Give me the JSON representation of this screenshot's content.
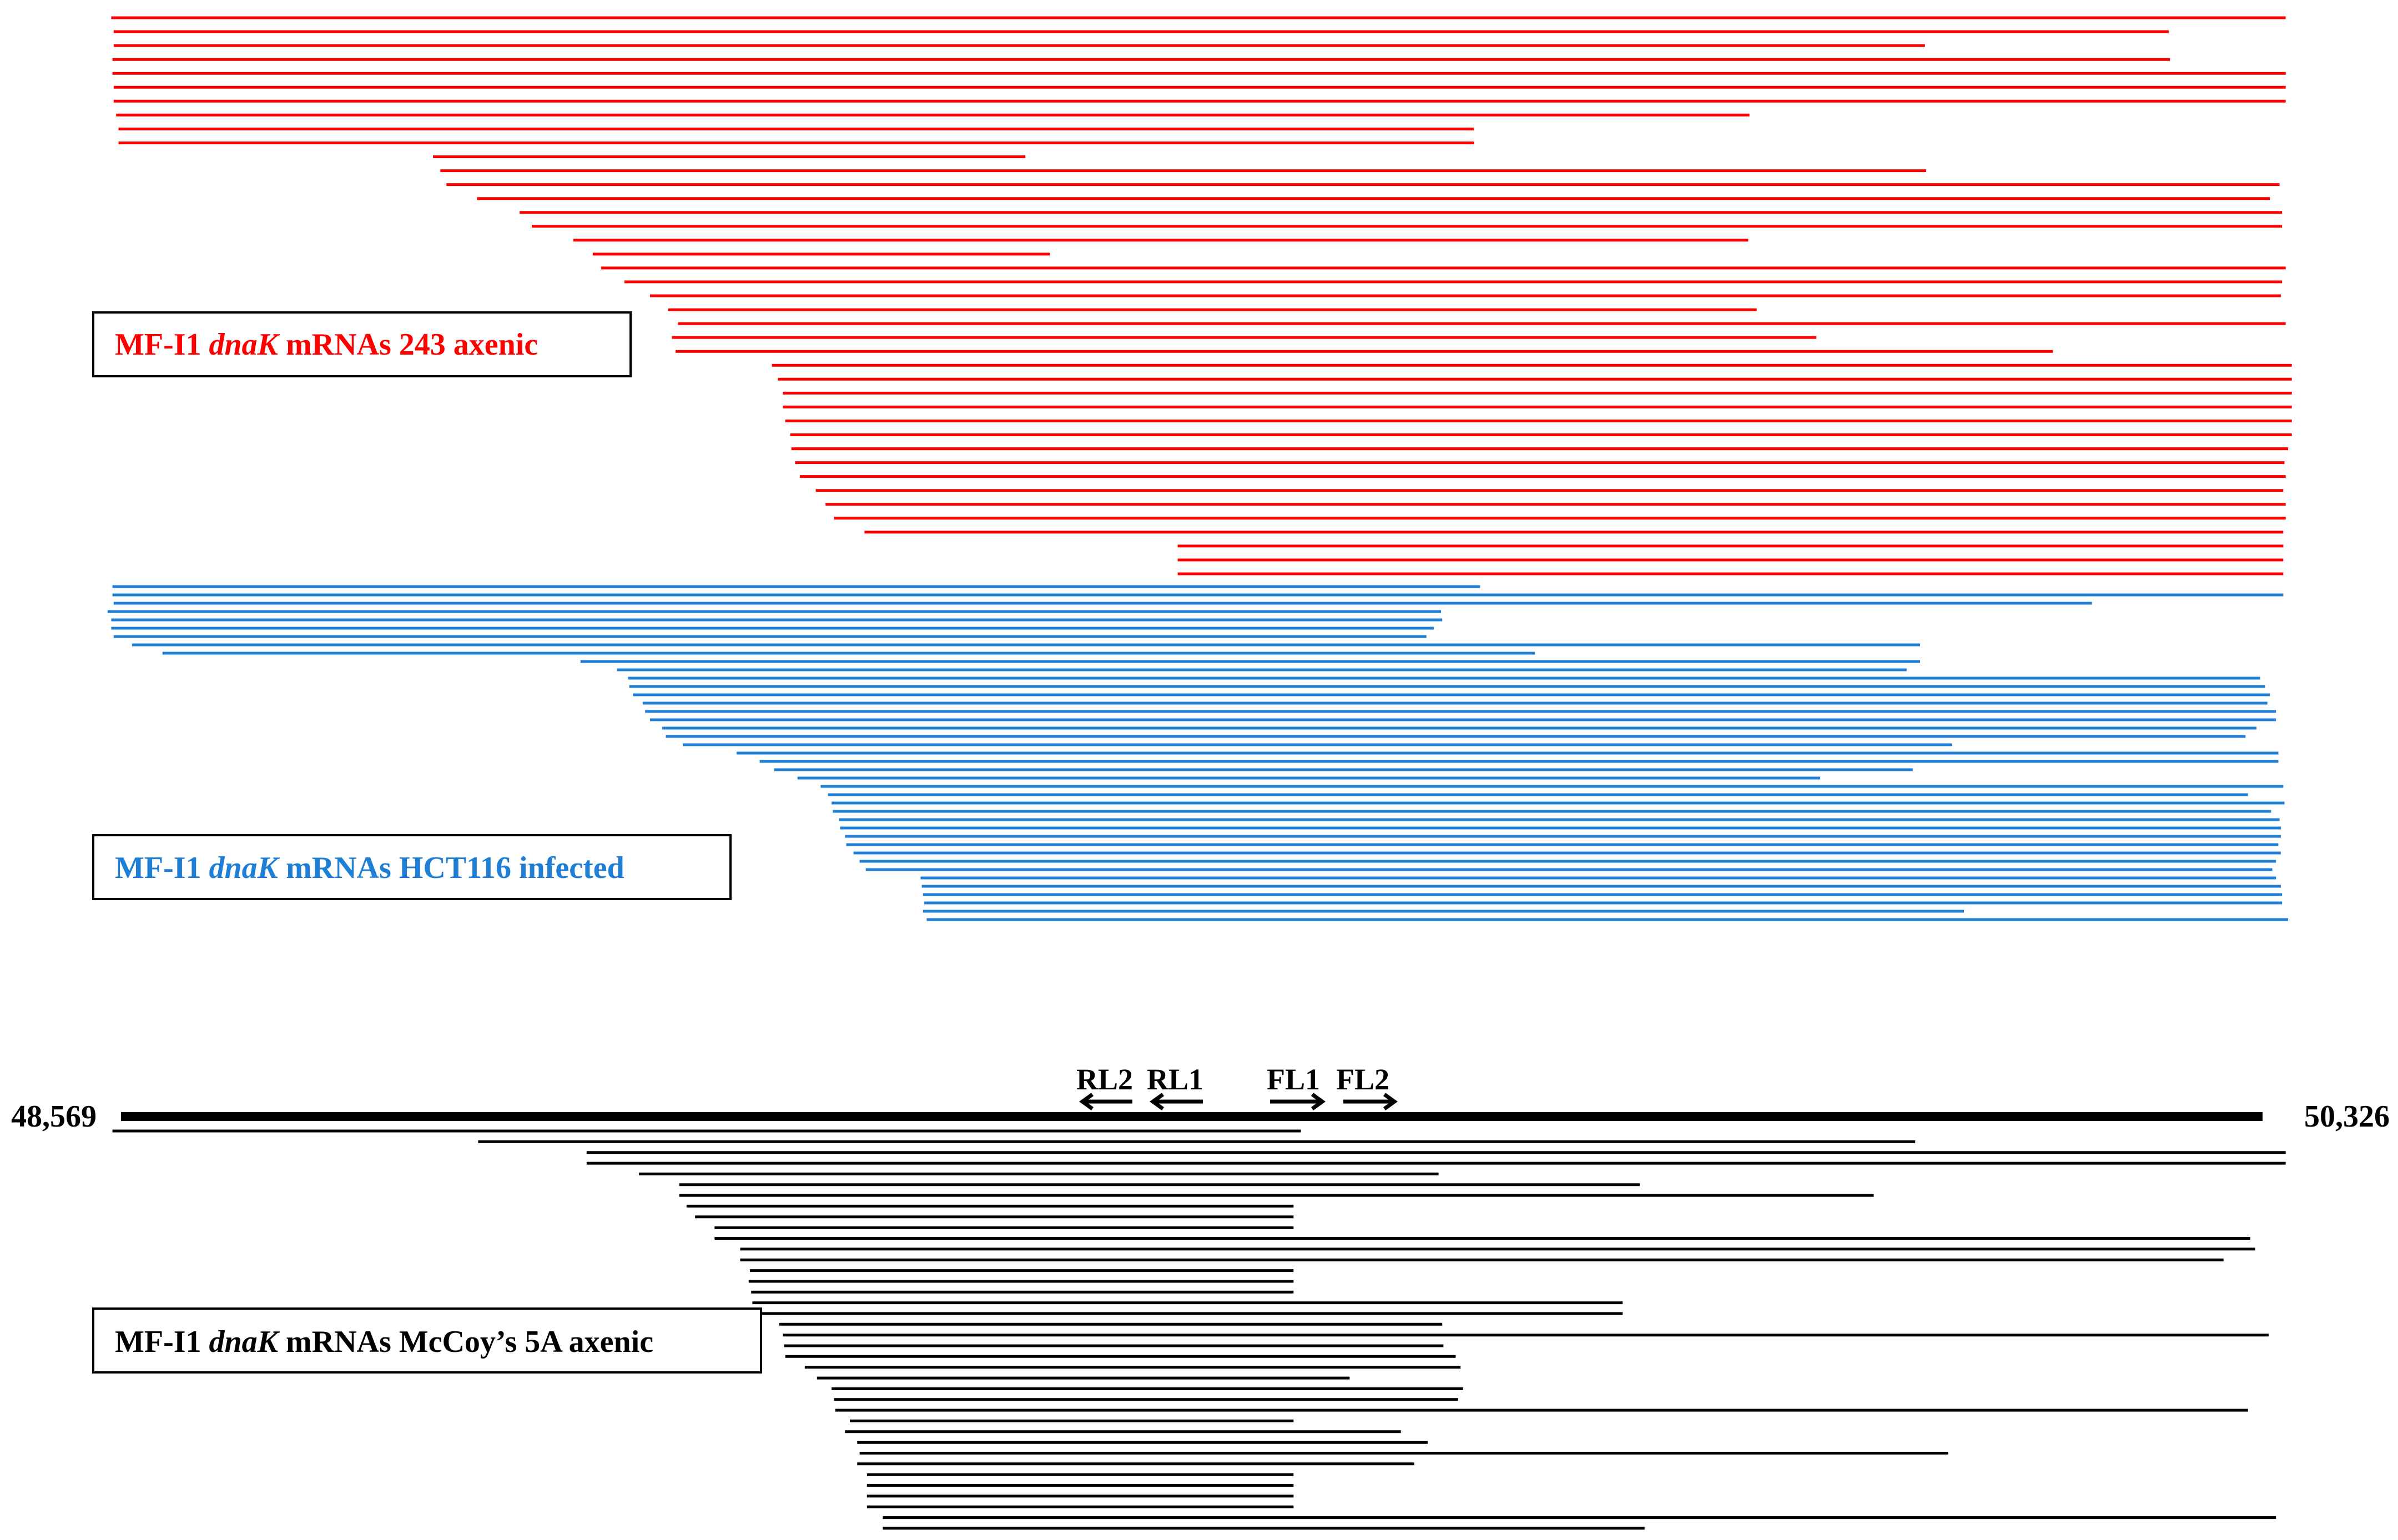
{
  "colors": {
    "axenic_243": "#ff0000",
    "hct116_infected": "#1f7fd6",
    "mccoy_5a_axenic": "#000000",
    "genome_axis": "#000000",
    "primer_arrows": "#000000"
  },
  "genome": {
    "start_label": "48,569",
    "end_label": "50,326",
    "start": 48569,
    "end": 50326
  },
  "primers": [
    {
      "label": "RL2",
      "direction": "left"
    },
    {
      "label": "RL1",
      "direction": "left"
    },
    {
      "label": "FL1",
      "direction": "right"
    },
    {
      "label": "FL2",
      "direction": "right"
    }
  ],
  "groups": [
    {
      "id": "axenic_243",
      "label_prefix": "MF-I1 ",
      "label_gene": "dnaK",
      "label_suffix": " mRNAs 243 axenic",
      "color": "#ff0000",
      "reads": [
        [
          48561,
          50345
        ],
        [
          48563,
          50249
        ],
        [
          48563,
          50049
        ],
        [
          48562,
          50250
        ],
        [
          48562,
          50345
        ],
        [
          48563,
          50345
        ],
        [
          48563,
          50345
        ],
        [
          48565,
          49905
        ],
        [
          48567,
          49679
        ],
        [
          48567,
          49679
        ],
        [
          48825,
          49311
        ],
        [
          48831,
          50050
        ],
        [
          48836,
          50340
        ],
        [
          48861,
          50332
        ],
        [
          48896,
          50342
        ],
        [
          48906,
          50342
        ],
        [
          48940,
          49904
        ],
        [
          48956,
          49331
        ],
        [
          48963,
          50345
        ],
        [
          48982,
          50342
        ],
        [
          49003,
          50341
        ],
        [
          49018,
          49911
        ],
        [
          49026,
          50345
        ],
        [
          49021,
          49960
        ],
        [
          49024,
          50154
        ],
        [
          49103,
          50350
        ],
        [
          49108,
          50350
        ],
        [
          49112,
          50350
        ],
        [
          49112,
          50350
        ],
        [
          49114,
          50350
        ],
        [
          49118,
          50350
        ],
        [
          49119,
          50347
        ],
        [
          49122,
          50344
        ],
        [
          49126,
          50345
        ],
        [
          49139,
          50343
        ],
        [
          49147,
          50345
        ],
        [
          49154,
          50345
        ],
        [
          49179,
          50343
        ],
        [
          49436,
          50343
        ],
        [
          49436,
          50343
        ],
        [
          49436,
          50343
        ]
      ]
    },
    {
      "id": "hct116_infected",
      "label_prefix": "MF-I1 ",
      "label_gene": "dnaK",
      "label_suffix": " mRNAs HCT116 infected",
      "color": "#1f7fd6",
      "reads": [
        [
          48562,
          49684
        ],
        [
          48562,
          50343
        ],
        [
          48563,
          50186
        ],
        [
          48558,
          49652
        ],
        [
          48561,
          49653
        ],
        [
          48561,
          49646
        ],
        [
          48563,
          49640
        ],
        [
          48578,
          50045
        ],
        [
          48603,
          49729
        ],
        [
          48946,
          50045
        ],
        [
          48976,
          50034
        ],
        [
          48985,
          50324
        ],
        [
          48986,
          50328
        ],
        [
          48989,
          50332
        ],
        [
          48997,
          50330
        ],
        [
          48999,
          50337
        ],
        [
          49003,
          50337
        ],
        [
          49013,
          50321
        ],
        [
          49016,
          50312
        ],
        [
          49030,
          50071
        ],
        [
          49074,
          50339
        ],
        [
          49093,
          50339
        ],
        [
          49105,
          50039
        ],
        [
          49124,
          49963
        ],
        [
          49143,
          50343
        ],
        [
          49149,
          50314
        ],
        [
          49152,
          50344
        ],
        [
          49153,
          50333
        ],
        [
          49158,
          50340
        ],
        [
          49159,
          50341
        ],
        [
          49163,
          50341
        ],
        [
          49164,
          50339
        ],
        [
          49170,
          50341
        ],
        [
          49175,
          50337
        ],
        [
          49180,
          50334
        ],
        [
          49225,
          50337
        ],
        [
          49226,
          50341
        ],
        [
          49227,
          50342
        ],
        [
          49228,
          50342
        ],
        [
          49227,
          50081
        ],
        [
          49230,
          50347
        ]
      ]
    },
    {
      "id": "mccoy_5a_axenic",
      "label_prefix": "MF-I1 ",
      "label_gene": "dnaK",
      "label_suffix": " mRNAs McCoy’s 5A axenic",
      "color": "#000000",
      "reads": [
        [
          48562,
          49537
        ],
        [
          48862,
          50041
        ],
        [
          48951,
          50345
        ],
        [
          48951,
          50345
        ],
        [
          48994,
          49650
        ],
        [
          49027,
          49815
        ],
        [
          49027,
          50007
        ],
        [
          49033,
          49531
        ],
        [
          49040,
          49531
        ],
        [
          49056,
          49531
        ],
        [
          49056,
          50316
        ],
        [
          49077,
          50320
        ],
        [
          49077,
          50294
        ],
        [
          49085,
          49531
        ],
        [
          49084,
          49531
        ],
        [
          49086,
          49531
        ],
        [
          49087,
          49801
        ],
        [
          49087,
          49801
        ],
        [
          49109,
          49653
        ],
        [
          49112,
          50331
        ],
        [
          49113,
          49654
        ],
        [
          49114,
          49664
        ],
        [
          49130,
          49668
        ],
        [
          49140,
          49577
        ],
        [
          49152,
          49670
        ],
        [
          49154,
          49666
        ],
        [
          49155,
          50314
        ],
        [
          49167,
          49531
        ],
        [
          49163,
          49619
        ],
        [
          49173,
          49641
        ],
        [
          49175,
          50068
        ],
        [
          49173,
          49630
        ],
        [
          49181,
          49531
        ],
        [
          49181,
          49531
        ],
        [
          49181,
          49531
        ],
        [
          49181,
          49531
        ],
        [
          49194,
          50337
        ],
        [
          49194,
          49819
        ]
      ]
    }
  ]
}
